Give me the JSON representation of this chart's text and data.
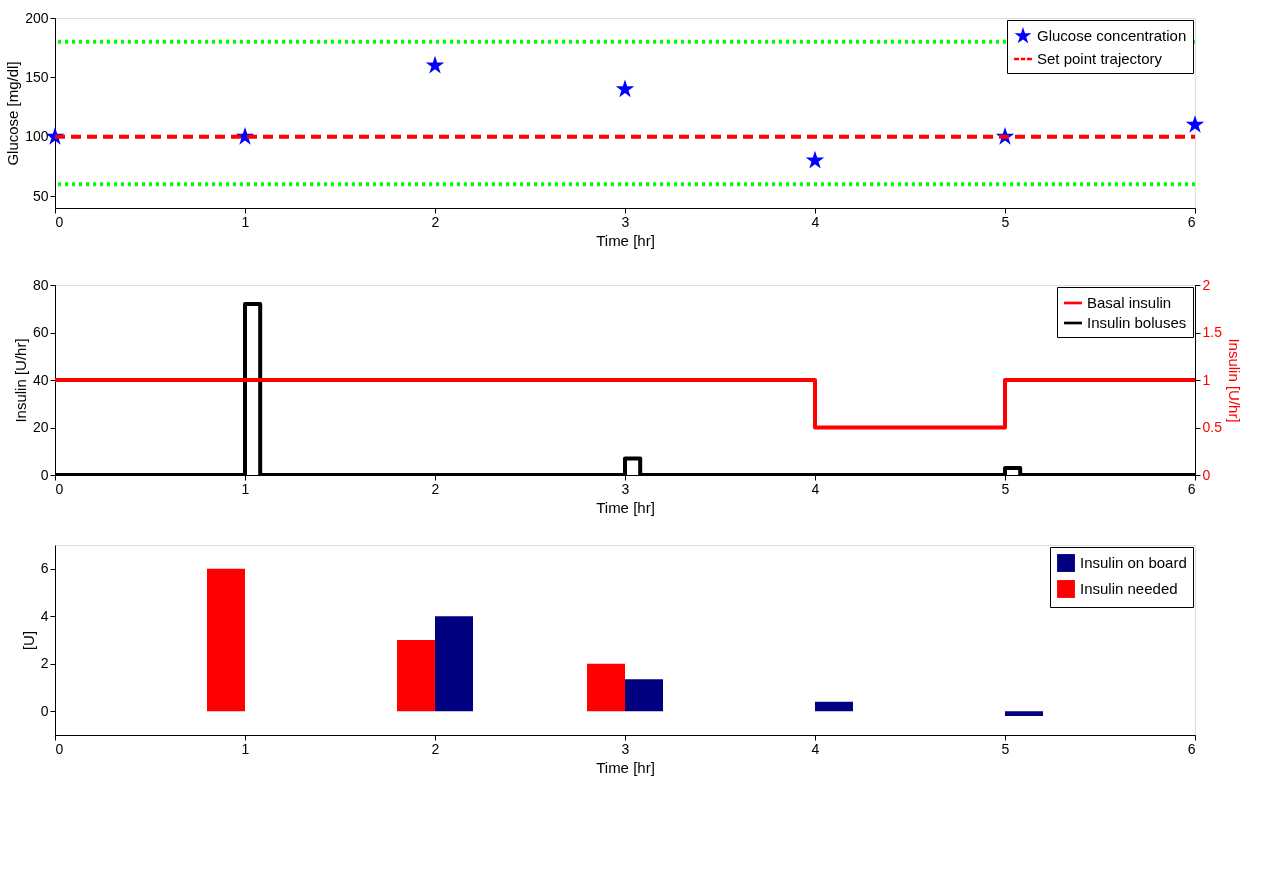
{
  "chart_data": [
    {
      "type": "scatter",
      "xlabel": "Time [hr]",
      "ylabel": "Glucose [mg/dl]",
      "xlim": [
        0,
        6
      ],
      "xticks": [
        0,
        1,
        2,
        3,
        4,
        5,
        6
      ],
      "ylim": [
        40,
        200
      ],
      "yticks": [
        50,
        100,
        150,
        200
      ],
      "legend": "top right",
      "series": [
        {
          "name": "Glucose concentration",
          "type": "scatter",
          "marker": "star",
          "color": "#0000ff",
          "x": [
            0,
            1,
            2,
            3,
            4,
            5,
            6
          ],
          "values": [
            100,
            100,
            160,
            140,
            80,
            100,
            110
          ]
        },
        {
          "name": "Set point trajectory",
          "type": "line",
          "line_style": "dashed",
          "color": "#ff0000",
          "x": [
            0,
            6
          ],
          "values": [
            100,
            100
          ]
        }
      ],
      "ref_lines": [
        {
          "axis": "y",
          "value": 180,
          "color": "#00ff00",
          "line_style": "dotted"
        },
        {
          "axis": "y",
          "value": 60,
          "color": "#00ff00",
          "line_style": "dotted"
        }
      ]
    },
    {
      "type": "step",
      "xlabel": "Time [hr]",
      "ylabel": "Insulin [U/hr]",
      "y2label": "Insulin [U/hr]",
      "xlim": [
        0,
        6
      ],
      "xticks": [
        0,
        1,
        2,
        3,
        4,
        5,
        6
      ],
      "ylim": [
        0,
        80
      ],
      "yticks": [
        0,
        20,
        40,
        60,
        80
      ],
      "y2lim": [
        0,
        2
      ],
      "y2ticks": [
        0,
        0.5,
        1,
        1.5,
        2
      ],
      "legend": "top right",
      "series": [
        {
          "name": "Basal insulin",
          "type": "step",
          "axis": "y2",
          "color": "#ff0000",
          "x": [
            0,
            4,
            5,
            6
          ],
          "values": [
            1,
            0.5,
            1,
            1
          ]
        },
        {
          "name": "Insulin boluses",
          "type": "step",
          "color": "#000000",
          "x": [
            0,
            1,
            1.08,
            3,
            3.08,
            5,
            5.08,
            6
          ],
          "values": [
            0,
            72,
            0,
            7,
            0,
            3,
            0,
            0
          ]
        }
      ]
    },
    {
      "type": "bar",
      "xlabel": "Time [hr]",
      "ylabel": "[U]",
      "xlim": [
        0,
        6
      ],
      "xticks": [
        0,
        1,
        2,
        3,
        4,
        5,
        6
      ],
      "ylim": [
        -1,
        7
      ],
      "yticks": [
        0,
        2,
        4,
        6
      ],
      "legend": "top right",
      "x": [
        0,
        1,
        2,
        3,
        4,
        5,
        6
      ],
      "series": [
        {
          "name": "Insulin on board",
          "color": "#000080",
          "values": [
            0,
            0,
            4,
            1.35,
            0.4,
            -0.2,
            0
          ]
        },
        {
          "name": "Insulin needed",
          "color": "#ff0000",
          "values": [
            0,
            6,
            3,
            2,
            0,
            0,
            0
          ]
        }
      ]
    }
  ]
}
